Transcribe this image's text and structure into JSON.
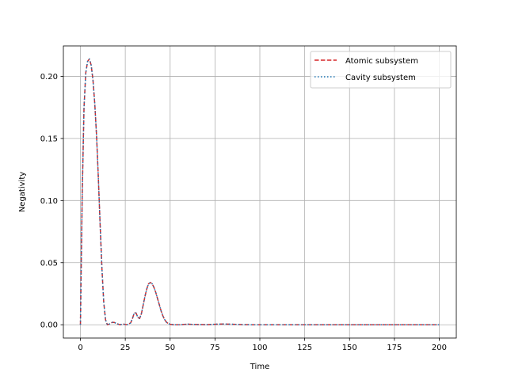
{
  "chart_data": {
    "type": "line",
    "xlabel": "Time",
    "ylabel": "Negativity",
    "xlim": [
      -9.5,
      209.5
    ],
    "ylim": [
      -0.0107,
      0.2245
    ],
    "xticks": [
      0,
      25,
      50,
      75,
      100,
      125,
      150,
      175,
      200
    ],
    "yticks": [
      0.0,
      0.05,
      0.1,
      0.15,
      0.2
    ],
    "xtick_labels": [
      "0",
      "25",
      "50",
      "75",
      "100",
      "125",
      "150",
      "175",
      "200"
    ],
    "ytick_labels": [
      "0.00",
      "0.05",
      "0.10",
      "0.15",
      "0.20"
    ],
    "grid": true,
    "legend_position": "top-right",
    "x": [
      0,
      1,
      2,
      3,
      4,
      5,
      6,
      7,
      8,
      9,
      10,
      11,
      12,
      13,
      14,
      15,
      16,
      17,
      18,
      19,
      20,
      22,
      24,
      26,
      28,
      29,
      30,
      31,
      32,
      33,
      34,
      35,
      36,
      37,
      38,
      39,
      40,
      41,
      42,
      43,
      44,
      45,
      46,
      47,
      48,
      49,
      50,
      52,
      54,
      56,
      58,
      60,
      62,
      64,
      66,
      68,
      70,
      75,
      80,
      85,
      90,
      95,
      100,
      110,
      120,
      130,
      140,
      150,
      160,
      170,
      180,
      190,
      200
    ],
    "series": [
      {
        "name": "Atomic subsystem",
        "color": "#d62728",
        "style": "dashed",
        "values": [
          0.0,
          0.105,
          0.175,
          0.203,
          0.212,
          0.214,
          0.209,
          0.197,
          0.178,
          0.152,
          0.118,
          0.08,
          0.045,
          0.018,
          0.004,
          0.0,
          0.0005,
          0.0015,
          0.002,
          0.0018,
          0.001,
          0.0,
          0.0005,
          0.0,
          0.0015,
          0.005,
          0.0095,
          0.0095,
          0.006,
          0.005,
          0.009,
          0.016,
          0.023,
          0.029,
          0.033,
          0.034,
          0.033,
          0.03,
          0.026,
          0.021,
          0.016,
          0.011,
          0.007,
          0.004,
          0.002,
          0.001,
          0.0004,
          0.0,
          0.0,
          0.0,
          0.0003,
          0.0005,
          0.0003,
          0.0002,
          0.0001,
          0.0001,
          0.0,
          0.0004,
          0.0006,
          0.0004,
          0.0001,
          0.0,
          0.0,
          0.0,
          0.0,
          0.0,
          0.0,
          0.0,
          0.0,
          0.0,
          0.0,
          0.0,
          0.0
        ]
      },
      {
        "name": "Cavity subsystem",
        "color": "#1f77b4",
        "style": "dotted",
        "values": [
          0.0,
          0.105,
          0.175,
          0.203,
          0.212,
          0.214,
          0.209,
          0.197,
          0.178,
          0.152,
          0.118,
          0.08,
          0.045,
          0.018,
          0.004,
          0.0,
          0.0005,
          0.0015,
          0.002,
          0.0018,
          0.001,
          0.0,
          0.0005,
          0.0,
          0.0015,
          0.005,
          0.0095,
          0.0095,
          0.006,
          0.005,
          0.009,
          0.016,
          0.023,
          0.029,
          0.033,
          0.034,
          0.033,
          0.03,
          0.026,
          0.021,
          0.016,
          0.011,
          0.007,
          0.004,
          0.002,
          0.001,
          0.0004,
          0.0,
          0.0,
          0.0,
          0.0003,
          0.0005,
          0.0003,
          0.0002,
          0.0001,
          0.0001,
          0.0,
          0.0004,
          0.0006,
          0.0004,
          0.0001,
          0.0,
          0.0,
          0.0,
          0.0,
          0.0,
          0.0,
          0.0,
          0.0,
          0.0,
          0.0,
          0.0,
          0.0
        ]
      }
    ]
  }
}
